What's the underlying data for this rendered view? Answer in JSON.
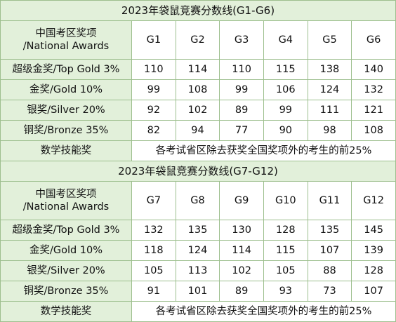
{
  "tables": [
    {
      "title": "2023年袋鼠竞赛分数线(G1-G6)",
      "header_label_line1": "中国考区奖项",
      "header_label_line2": "/National Awards",
      "grades": [
        "G1",
        "G2",
        "G3",
        "G4",
        "G5",
        "G6"
      ],
      "rows": [
        {
          "label": "超级金奖/Top Gold 3%",
          "values": [
            "110",
            "114",
            "110",
            "115",
            "138",
            "140"
          ]
        },
        {
          "label": "金奖/Gold 10%",
          "values": [
            "99",
            "108",
            "99",
            "106",
            "124",
            "132"
          ]
        },
        {
          "label": "银奖/Silver 20%",
          "values": [
            "92",
            "102",
            "89",
            "99",
            "111",
            "121"
          ]
        },
        {
          "label": "铜奖/Bronze 35%",
          "values": [
            "82",
            "94",
            "77",
            "90",
            "98",
            "108"
          ]
        }
      ],
      "footer_label": "数学技能奖",
      "footer_text": "各考试省区除去获奖全国奖项外的考生的前25%"
    },
    {
      "title": "2023年袋鼠竞赛分数线(G7-G12)",
      "header_label_line1": "中国考区奖项",
      "header_label_line2": "/National Awards",
      "grades": [
        "G7",
        "G8",
        "G9",
        "G10",
        "G11",
        "G12"
      ],
      "rows": [
        {
          "label": "超级金奖/Top Gold 3%",
          "values": [
            "132",
            "135",
            "130",
            "128",
            "135",
            "145"
          ]
        },
        {
          "label": "金奖/Gold 10%",
          "values": [
            "118",
            "124",
            "114",
            "115",
            "107",
            "139"
          ]
        },
        {
          "label": "银奖/Silver 20%",
          "values": [
            "105",
            "113",
            "102",
            "105",
            "88",
            "128"
          ]
        },
        {
          "label": "铜奖/Bronze 35%",
          "values": [
            "91",
            "101",
            "89",
            "93",
            "73",
            "107"
          ]
        }
      ],
      "footer_label": "数学技能奖",
      "footer_text": "各考试省区除去获奖全国奖项外的考生的前25%"
    }
  ]
}
